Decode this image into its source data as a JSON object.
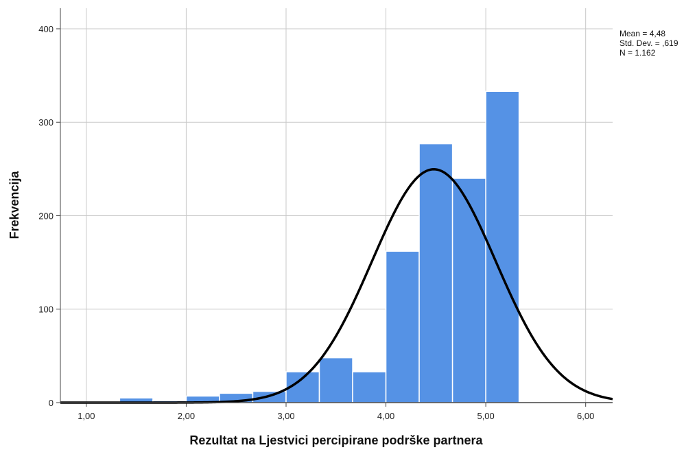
{
  "chart_data": {
    "type": "histogram",
    "x_label": "Rezultat na Ljestvici percipirane podrške partnera",
    "y_label": "Frekvencija",
    "bins": [
      1.3333,
      1.6667,
      2.0,
      2.3333,
      2.6667,
      3.0,
      3.3333,
      3.6667,
      4.0,
      4.3333,
      4.6667,
      5.0,
      5.3333
    ],
    "values": [
      5,
      2,
      7,
      10,
      12,
      33,
      48,
      33,
      162,
      277,
      240,
      333
    ],
    "color": "#5592e5",
    "curve_color": "#000000",
    "xlim": [
      0.74,
      6.27
    ],
    "ylim": [
      0,
      422
    ],
    "xticks": [
      {
        "value": 1,
        "label": "1,00"
      },
      {
        "value": 2,
        "label": "2,00"
      },
      {
        "value": 3,
        "label": "3,00"
      },
      {
        "value": 4,
        "label": "4,00"
      },
      {
        "value": 5,
        "label": "5,00"
      },
      {
        "value": 6,
        "label": "6,00"
      }
    ],
    "yticks": [
      0,
      100,
      200,
      300,
      400
    ],
    "grid": true,
    "stats": [
      {
        "value": 4.48,
        "label": "Mean = 4,48"
      },
      {
        "value": 0.619,
        "label": "Std. Dev. = ,619"
      },
      {
        "value": 1162,
        "label": "N = 1.162"
      }
    ]
  }
}
